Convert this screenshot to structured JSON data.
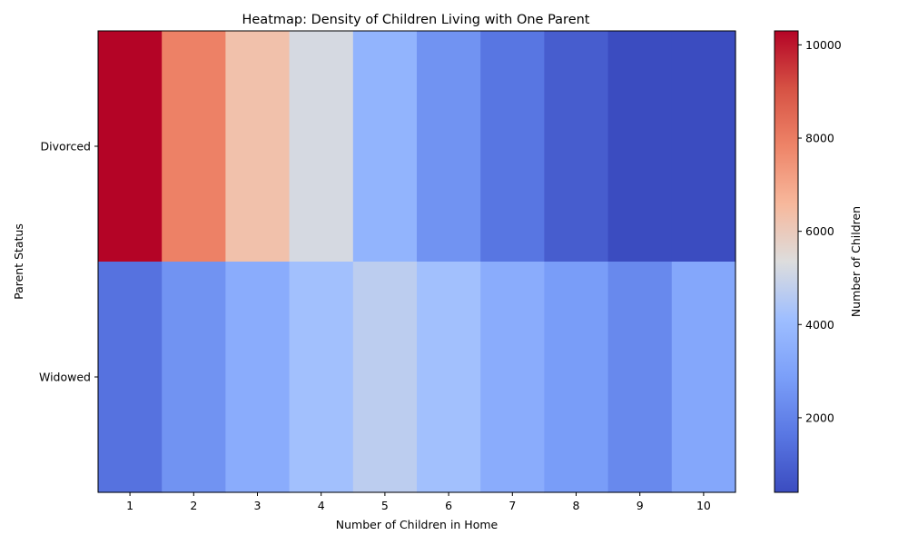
{
  "chart_data": {
    "type": "heatmap",
    "title": "Heatmap: Density of Children Living with One Parent",
    "xlabel": "Number of Children in Home",
    "ylabel": "Parent Status",
    "x_categories": [
      "1",
      "2",
      "3",
      "4",
      "5",
      "6",
      "7",
      "8",
      "9",
      "10"
    ],
    "y_categories": [
      "Divorced",
      "Widowed"
    ],
    "values": [
      [
        10300,
        7900,
        6300,
        5200,
        3700,
        2500,
        1600,
        900,
        400,
        400
      ],
      [
        1500,
        2500,
        3400,
        4200,
        4700,
        4200,
        3400,
        2800,
        2200,
        3200
      ]
    ],
    "colormap": "coolwarm",
    "colorbar": {
      "label": "Number of Children",
      "range": [
        400,
        10300
      ],
      "ticks": [
        "2000",
        "4000",
        "6000",
        "8000",
        "10000"
      ]
    },
    "grid": false
  }
}
